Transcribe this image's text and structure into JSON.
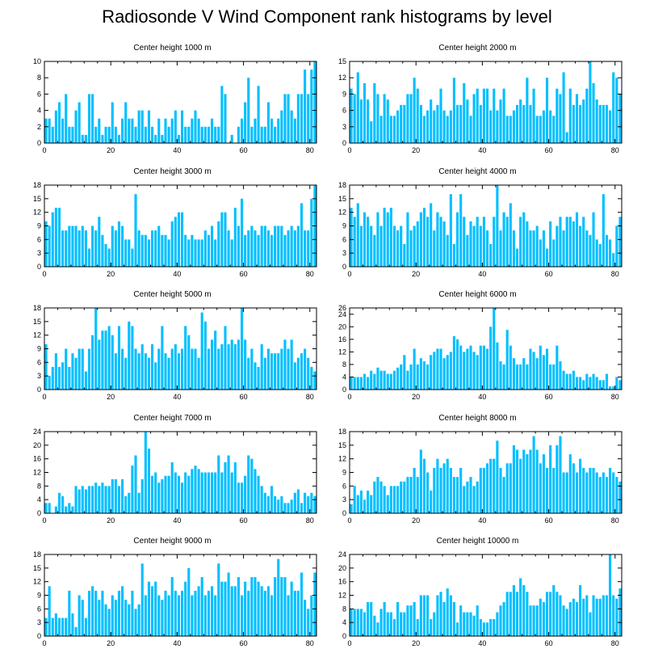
{
  "title": "Radiosonde V Wind Component rank histograms by level",
  "colors": {
    "bar": "#00bfff",
    "bar_edge": "#ffffff",
    "axis": "#000000"
  },
  "chart_data": [
    {
      "type": "bar",
      "title": "Center height 1000 m",
      "xlim": [
        0,
        82
      ],
      "ylim": [
        0,
        10
      ],
      "xticks": [
        0,
        20,
        40,
        60,
        80
      ],
      "yticks": [
        0,
        2,
        4,
        6,
        8,
        10
      ],
      "values": [
        3,
        3,
        2,
        4,
        5,
        3,
        6,
        2,
        2,
        4,
        5,
        1,
        1,
        6,
        6,
        2,
        3,
        1,
        2,
        2,
        5,
        2,
        1,
        3,
        5,
        3,
        3,
        2,
        4,
        4,
        2,
        4,
        2,
        1,
        3,
        1,
        3,
        2,
        3,
        4,
        1,
        4,
        2,
        2,
        3,
        4,
        3,
        2,
        2,
        2,
        3,
        2,
        2,
        7,
        6,
        0,
        1,
        0,
        2,
        3,
        5,
        8,
        2,
        3,
        7,
        2,
        2,
        5,
        3,
        2,
        3,
        4,
        6,
        6,
        4,
        3,
        6,
        6,
        9,
        6,
        9,
        10
      ]
    },
    {
      "type": "bar",
      "title": "Center height 2000 m",
      "xlim": [
        0,
        82
      ],
      "ylim": [
        0,
        15
      ],
      "xticks": [
        0,
        20,
        40,
        60,
        80
      ],
      "yticks": [
        0,
        3,
        6,
        9,
        12,
        15
      ],
      "values": [
        10,
        9,
        13,
        8,
        11,
        8,
        4,
        11,
        9,
        5,
        9,
        8,
        5,
        5,
        6,
        7,
        7,
        9,
        9,
        12,
        10,
        7,
        5,
        6,
        8,
        6,
        7,
        10,
        6,
        5,
        6,
        12,
        7,
        7,
        11,
        8,
        5,
        9,
        10,
        7,
        10,
        10,
        6,
        10,
        6,
        8,
        10,
        5,
        5,
        6,
        7,
        8,
        7,
        12,
        7,
        10,
        5,
        5,
        6,
        12,
        6,
        5,
        10,
        9,
        13,
        2,
        10,
        7,
        9,
        7,
        8,
        10,
        15,
        11,
        8,
        7,
        7,
        7,
        6,
        13,
        12,
        9
      ]
    },
    {
      "type": "bar",
      "title": "Center height 3000 m",
      "xlim": [
        0,
        82
      ],
      "ylim": [
        0,
        18
      ],
      "xticks": [
        0,
        20,
        40,
        60,
        80
      ],
      "yticks": [
        0,
        3,
        6,
        9,
        12,
        15,
        18
      ],
      "values": [
        10,
        9,
        12,
        13,
        13,
        8,
        8,
        9,
        9,
        9,
        8,
        9,
        8,
        4,
        9,
        8,
        11,
        7,
        5,
        4,
        9,
        8,
        10,
        9,
        6,
        6,
        4,
        16,
        8,
        7,
        7,
        6,
        8,
        8,
        9,
        7,
        7,
        6,
        10,
        11,
        12,
        12,
        7,
        6,
        7,
        6,
        6,
        6,
        8,
        7,
        9,
        6,
        10,
        12,
        12,
        8,
        6,
        13,
        9,
        15,
        7,
        8,
        9,
        8,
        7,
        9,
        9,
        8,
        7,
        9,
        9,
        9,
        7,
        8,
        9,
        8,
        9,
        14,
        8,
        8,
        15,
        18
      ]
    },
    {
      "type": "bar",
      "title": "Center height 4000 m",
      "xlim": [
        0,
        82
      ],
      "ylim": [
        0,
        18
      ],
      "xticks": [
        0,
        20,
        40,
        60,
        80
      ],
      "yticks": [
        0,
        3,
        6,
        9,
        12,
        15,
        18
      ],
      "values": [
        13,
        11,
        14,
        9,
        12,
        11,
        9,
        7,
        12,
        9,
        13,
        12,
        13,
        9,
        8,
        9,
        5,
        12,
        8,
        9,
        10,
        12,
        13,
        11,
        14,
        8,
        12,
        11,
        10,
        7,
        16,
        5,
        12,
        16,
        11,
        7,
        10,
        9,
        11,
        9,
        11,
        8,
        5,
        11,
        18,
        8,
        12,
        11,
        14,
        8,
        4,
        11,
        12,
        10,
        8,
        8,
        9,
        6,
        8,
        4,
        10,
        6,
        9,
        11,
        8,
        11,
        11,
        10,
        12,
        9,
        11,
        8,
        7,
        12,
        6,
        5,
        16,
        7,
        6,
        3,
        9,
        11
      ]
    },
    {
      "type": "bar",
      "title": "Center height 5000 m",
      "xlim": [
        0,
        82
      ],
      "ylim": [
        0,
        18
      ],
      "xticks": [
        0,
        20,
        40,
        60,
        80
      ],
      "yticks": [
        0,
        3,
        6,
        9,
        12,
        15,
        18
      ],
      "values": [
        10,
        3,
        5,
        8,
        5,
        6,
        9,
        5,
        8,
        7,
        9,
        9,
        4,
        9,
        12,
        18,
        11,
        13,
        13,
        14,
        12,
        8,
        14,
        9,
        7,
        15,
        14,
        9,
        8,
        10,
        8,
        7,
        10,
        6,
        9,
        14,
        8,
        7,
        9,
        10,
        8,
        9,
        14,
        12,
        9,
        9,
        7,
        17,
        15,
        9,
        11,
        13,
        9,
        10,
        14,
        10,
        11,
        10,
        11,
        18,
        11,
        7,
        9,
        6,
        5,
        10,
        7,
        9,
        8,
        8,
        8,
        9,
        11,
        9,
        11,
        6,
        7,
        8,
        9,
        7,
        5,
        4
      ]
    },
    {
      "type": "bar",
      "title": "Center height 6000 m",
      "xlim": [
        0,
        82
      ],
      "ylim": [
        0,
        26
      ],
      "xticks": [
        0,
        20,
        40,
        60,
        80
      ],
      "yticks": [
        0,
        4,
        8,
        12,
        16,
        20,
        24,
        26
      ],
      "values": [
        4,
        4,
        4,
        4,
        5,
        4,
        6,
        5,
        7,
        6,
        6,
        5,
        5,
        6,
        7,
        8,
        11,
        6,
        8,
        13,
        8,
        10,
        9,
        8,
        11,
        12,
        13,
        13,
        10,
        11,
        12,
        17,
        16,
        14,
        12,
        13,
        14,
        12,
        11,
        14,
        14,
        13,
        20,
        26,
        15,
        9,
        8,
        19,
        14,
        10,
        8,
        8,
        10,
        8,
        13,
        12,
        10,
        14,
        11,
        13,
        8,
        8,
        14,
        9,
        6,
        5,
        5,
        6,
        4,
        4,
        3,
        5,
        4,
        5,
        4,
        3,
        3,
        5,
        1,
        1,
        4,
        3
      ]
    },
    {
      "type": "bar",
      "title": "Center height 7000 m",
      "xlim": [
        0,
        82
      ],
      "ylim": [
        0,
        24
      ],
      "xticks": [
        0,
        20,
        40,
        60,
        80
      ],
      "yticks": [
        0,
        4,
        8,
        12,
        16,
        20,
        24
      ],
      "values": [
        3,
        3,
        0,
        2,
        6,
        5,
        2,
        3,
        2,
        8,
        7,
        8,
        7,
        8,
        8,
        9,
        8,
        9,
        8,
        8,
        10,
        10,
        8,
        10,
        5,
        6,
        14,
        17,
        6,
        10,
        24,
        19,
        11,
        12,
        9,
        10,
        11,
        11,
        15,
        12,
        11,
        9,
        12,
        11,
        13,
        14,
        13,
        12,
        12,
        12,
        12,
        12,
        17,
        12,
        15,
        17,
        12,
        15,
        9,
        9,
        11,
        17,
        16,
        13,
        11,
        8,
        6,
        5,
        8,
        5,
        4,
        5,
        3,
        3,
        4,
        6,
        7,
        3,
        6,
        5,
        6,
        5
      ]
    },
    {
      "type": "bar",
      "title": "Center height 8000 m",
      "xlim": [
        0,
        82
      ],
      "ylim": [
        0,
        18
      ],
      "xticks": [
        0,
        20,
        40,
        60,
        80
      ],
      "yticks": [
        0,
        3,
        6,
        9,
        12,
        15,
        18
      ],
      "values": [
        2,
        6,
        4,
        5,
        3,
        5,
        4,
        7,
        8,
        7,
        6,
        4,
        6,
        6,
        6,
        7,
        7,
        8,
        8,
        10,
        8,
        14,
        12,
        9,
        5,
        10,
        12,
        10,
        11,
        12,
        10,
        8,
        8,
        10,
        6,
        7,
        8,
        6,
        7,
        10,
        10,
        11,
        12,
        12,
        16,
        10,
        8,
        11,
        11,
        15,
        14,
        12,
        14,
        13,
        14,
        17,
        14,
        11,
        13,
        10,
        15,
        10,
        15,
        17,
        9,
        9,
        13,
        11,
        9,
        12,
        10,
        9,
        10,
        10,
        9,
        8,
        9,
        8,
        10,
        9,
        8,
        7
      ]
    },
    {
      "type": "bar",
      "title": "Center height 9000 m",
      "xlim": [
        0,
        82
      ],
      "ylim": [
        0,
        18
      ],
      "xticks": [
        0,
        20,
        40,
        60,
        80
      ],
      "yticks": [
        0,
        3,
        6,
        9,
        12,
        15,
        18
      ],
      "values": [
        4,
        11,
        4,
        5,
        4,
        4,
        4,
        10,
        5,
        2,
        9,
        8,
        4,
        10,
        11,
        10,
        8,
        10,
        7,
        6,
        9,
        8,
        10,
        11,
        8,
        7,
        10,
        6,
        7,
        16,
        9,
        12,
        11,
        12,
        9,
        8,
        10,
        9,
        13,
        10,
        9,
        10,
        12,
        15,
        9,
        10,
        11,
        13,
        9,
        10,
        11,
        9,
        16,
        12,
        12,
        14,
        11,
        11,
        13,
        9,
        12,
        10,
        13,
        13,
        12,
        11,
        10,
        11,
        9,
        13,
        17,
        13,
        13,
        9,
        12,
        10,
        10,
        14,
        8,
        6,
        9,
        14
      ]
    },
    {
      "type": "bar",
      "title": "Center height 10000 m",
      "xlim": [
        0,
        82
      ],
      "ylim": [
        0,
        24
      ],
      "xticks": [
        0,
        20,
        40,
        60,
        80
      ],
      "yticks": [
        0,
        4,
        8,
        12,
        16,
        20,
        24
      ],
      "values": [
        8,
        8,
        8,
        8,
        7,
        10,
        10,
        6,
        4,
        8,
        10,
        7,
        7,
        5,
        10,
        7,
        7,
        9,
        9,
        10,
        5,
        12,
        12,
        12,
        5,
        7,
        12,
        13,
        10,
        14,
        12,
        10,
        4,
        9,
        7,
        7,
        7,
        6,
        9,
        5,
        4,
        4,
        5,
        5,
        7,
        9,
        10,
        13,
        13,
        15,
        13,
        17,
        15,
        13,
        9,
        9,
        9,
        11,
        10,
        13,
        13,
        15,
        13,
        12,
        9,
        8,
        10,
        11,
        10,
        15,
        11,
        12,
        7,
        12,
        11,
        11,
        12,
        12,
        24,
        12,
        11,
        14
      ]
    }
  ]
}
